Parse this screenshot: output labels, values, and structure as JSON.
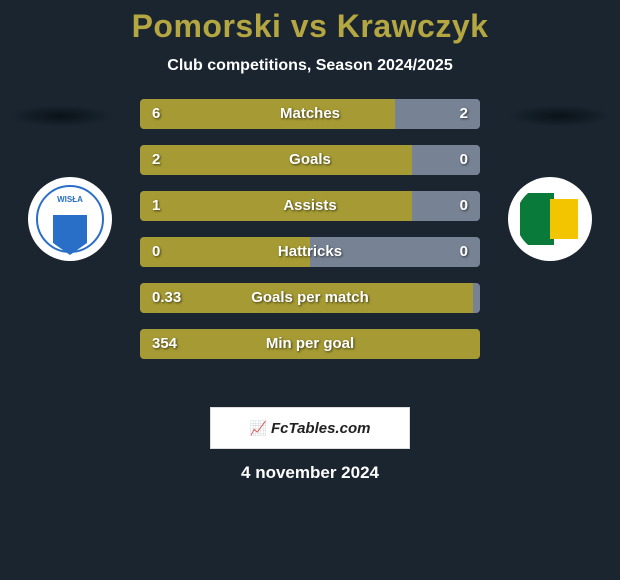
{
  "title": "Pomorski vs Krawczyk",
  "subtitle": "Club competitions, Season 2024/2025",
  "date": "4 november 2024",
  "logo_text": "FcTables.com",
  "colors": {
    "left": "#a59a33",
    "right": "#778394",
    "title": "#b4a640",
    "bg": "#1a2530"
  },
  "rows": [
    {
      "label": "Matches",
      "left_val": "6",
      "right_val": "2",
      "left_pct": 75,
      "right_pct": 25
    },
    {
      "label": "Goals",
      "left_val": "2",
      "right_val": "0",
      "left_pct": 80,
      "right_pct": 20
    },
    {
      "label": "Assists",
      "left_val": "1",
      "right_val": "0",
      "left_pct": 80,
      "right_pct": 20
    },
    {
      "label": "Hattricks",
      "left_val": "0",
      "right_val": "0",
      "left_pct": 50,
      "right_pct": 50
    },
    {
      "label": "Goals per match",
      "left_val": "0.33",
      "right_val": "",
      "left_pct": 98,
      "right_pct": 2
    },
    {
      "label": "Min per goal",
      "left_val": "354",
      "right_val": "",
      "left_pct": 100,
      "right_pct": 0
    }
  ]
}
